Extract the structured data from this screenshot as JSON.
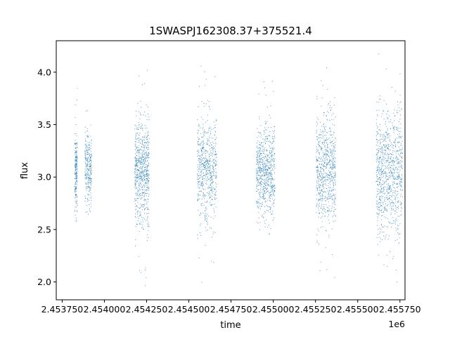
{
  "chart_data": {
    "type": "scatter",
    "title": "1SWASPJ162308.37+375521.4",
    "xlabel": "time",
    "ylabel": "flux",
    "x_offset_label": "1e6",
    "xlim": [
      2453715,
      2455780
    ],
    "ylim": [
      1.83,
      4.3
    ],
    "x_ticks": [
      2453750,
      2454000,
      2454250,
      2454500,
      2454750,
      2455000,
      2455250,
      2455500,
      2455750
    ],
    "x_tick_labels": [
      "2.453750",
      "2.454000",
      "2.454250",
      "2.454500",
      "2.454750",
      "2.455000",
      "2.455250",
      "2.455500",
      "2.455750"
    ],
    "y_ticks": [
      2.0,
      2.5,
      3.0,
      3.5,
      4.0
    ],
    "y_tick_labels": [
      "2.0",
      "2.5",
      "3.0",
      "3.5",
      "4.0"
    ],
    "grid": false,
    "marker_color": "#1f77b4",
    "series": [
      {
        "seasons": [
          {
            "x_range": [
              2453825,
              2453840
            ],
            "center": 3.05,
            "spread": 0.18,
            "y_range": [
              2.55,
              3.9
            ],
            "density": 0.3
          },
          {
            "x_range": [
              2453885,
              2453925
            ],
            "center": 3.08,
            "spread": 0.17,
            "y_range": [
              2.62,
              3.87
            ],
            "density": 0.4
          },
          {
            "x_range": [
              2454180,
              2454265
            ],
            "center": 3.05,
            "spread": 0.25,
            "y_range": [
              1.96,
              4.07
            ],
            "density": 1.0
          },
          {
            "x_range": [
              2454550,
              2454665
            ],
            "center": 3.07,
            "spread": 0.24,
            "y_range": [
              1.96,
              4.15
            ],
            "density": 0.9
          },
          {
            "x_range": [
              2454900,
              2455010
            ],
            "center": 3.05,
            "spread": 0.22,
            "y_range": [
              2.38,
              3.95
            ],
            "density": 1.0
          },
          {
            "x_range": [
              2455255,
              2455370
            ],
            "center": 3.05,
            "spread": 0.26,
            "y_range": [
              1.96,
              4.1
            ],
            "density": 1.0
          },
          {
            "x_range": [
              2455610,
              2455765
            ],
            "center": 3.05,
            "spread": 0.3,
            "y_range": [
              1.96,
              4.18
            ],
            "density": 1.3
          }
        ]
      }
    ]
  }
}
